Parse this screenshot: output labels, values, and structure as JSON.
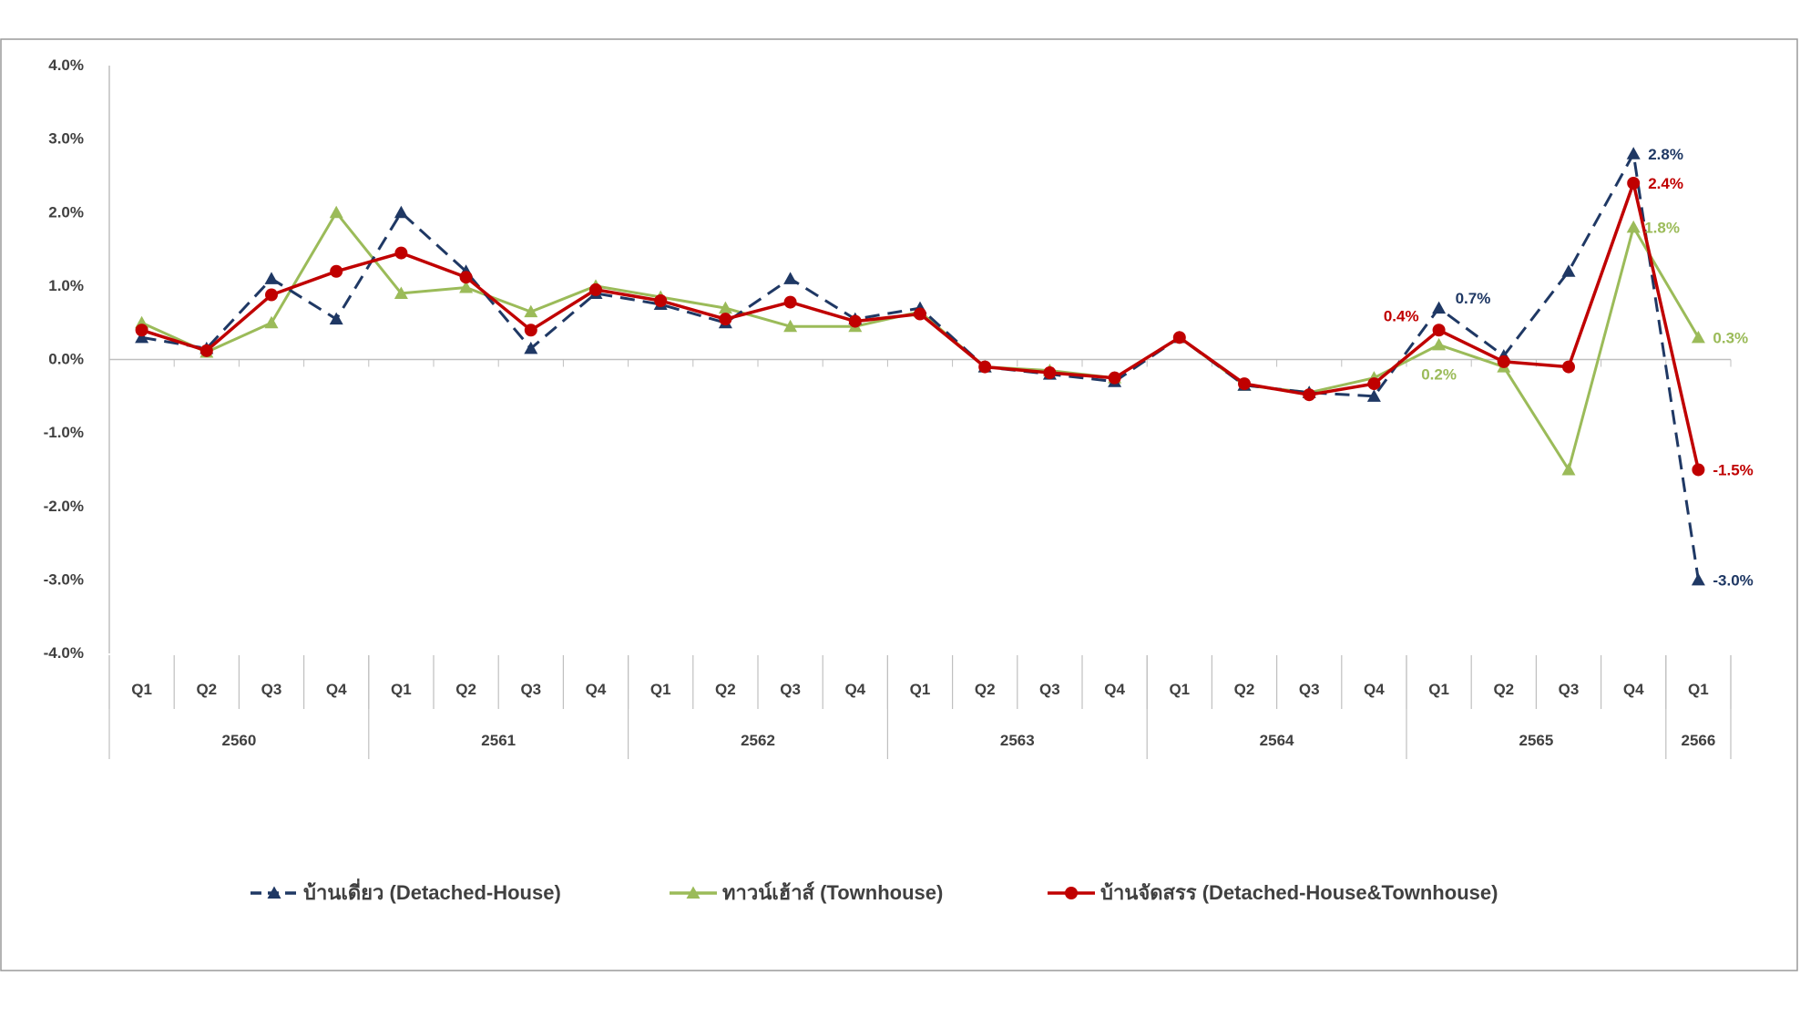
{
  "chart_data": {
    "type": "line",
    "title": "",
    "xlabel": "",
    "ylabel": "",
    "ylim": [
      -4.0,
      4.0
    ],
    "yticks": [
      4.0,
      3.0,
      2.0,
      1.0,
      0.0,
      -1.0,
      -2.0,
      -3.0,
      -4.0
    ],
    "ytick_labels": [
      "4.0%",
      "3.0%",
      "2.0%",
      "1.0%",
      "0.0%",
      "-1.0%",
      "-2.0%",
      "-3.0%",
      "-4.0%"
    ],
    "quarters": [
      "Q1",
      "Q2",
      "Q3",
      "Q4",
      "Q1",
      "Q2",
      "Q3",
      "Q4",
      "Q1",
      "Q2",
      "Q3",
      "Q4",
      "Q1",
      "Q2",
      "Q3",
      "Q4",
      "Q1",
      "Q2",
      "Q3",
      "Q4",
      "Q1",
      "Q2",
      "Q3",
      "Q4",
      "Q1"
    ],
    "years": [
      {
        "label": "2560",
        "count": 4
      },
      {
        "label": "2561",
        "count": 4
      },
      {
        "label": "2562",
        "count": 4
      },
      {
        "label": "2563",
        "count": 4
      },
      {
        "label": "2564",
        "count": 4
      },
      {
        "label": "2565",
        "count": 4
      },
      {
        "label": "2566",
        "count": 1
      }
    ],
    "legend_position": "bottom",
    "grid": false,
    "series": [
      {
        "name": "บ้านเดี่ยว (Detached-House)",
        "color": "#1f3864",
        "style": "dashed",
        "marker": "triangle",
        "values": [
          0.3,
          0.15,
          1.1,
          0.55,
          2.0,
          1.2,
          0.15,
          0.9,
          0.75,
          0.5,
          1.1,
          0.55,
          0.7,
          -0.1,
          -0.2,
          -0.3,
          0.3,
          -0.35,
          -0.45,
          -0.5,
          0.7,
          0.05,
          1.2,
          2.8,
          -3.0
        ],
        "labels": [
          {
            "index": 20,
            "text": "0.7%"
          },
          {
            "index": 23,
            "text": "2.8%"
          },
          {
            "index": 24,
            "text": "-3.0%"
          }
        ]
      },
      {
        "name": "ทาวน์เฮ้าส์ (Townhouse)",
        "color": "#9bbb59",
        "style": "solid",
        "marker": "triangle",
        "values": [
          0.5,
          0.1,
          0.5,
          2.0,
          0.9,
          0.98,
          0.65,
          1.0,
          0.85,
          0.7,
          0.45,
          0.45,
          0.65,
          -0.1,
          -0.15,
          -0.25,
          0.3,
          -0.35,
          -0.45,
          -0.25,
          0.2,
          -0.1,
          -1.5,
          1.8,
          0.3
        ],
        "labels": [
          {
            "index": 20,
            "text": "0.2%"
          },
          {
            "index": 23,
            "text": "1.8%"
          },
          {
            "index": 24,
            "text": "0.3%"
          }
        ]
      },
      {
        "name": "บ้านจัดสรร (Detached-House&Townhouse)",
        "color": "#c00000",
        "style": "solid",
        "marker": "circle",
        "values": [
          0.4,
          0.12,
          0.88,
          1.2,
          1.45,
          1.12,
          0.4,
          0.95,
          0.8,
          0.55,
          0.78,
          0.52,
          0.62,
          -0.1,
          -0.18,
          -0.25,
          0.3,
          -0.33,
          -0.48,
          -0.33,
          0.4,
          -0.03,
          -0.1,
          2.4,
          -1.5
        ],
        "labels": [
          {
            "index": 20,
            "text": "0.4%"
          },
          {
            "index": 23,
            "text": "2.4%"
          },
          {
            "index": 24,
            "text": "-1.5%"
          }
        ]
      }
    ]
  }
}
